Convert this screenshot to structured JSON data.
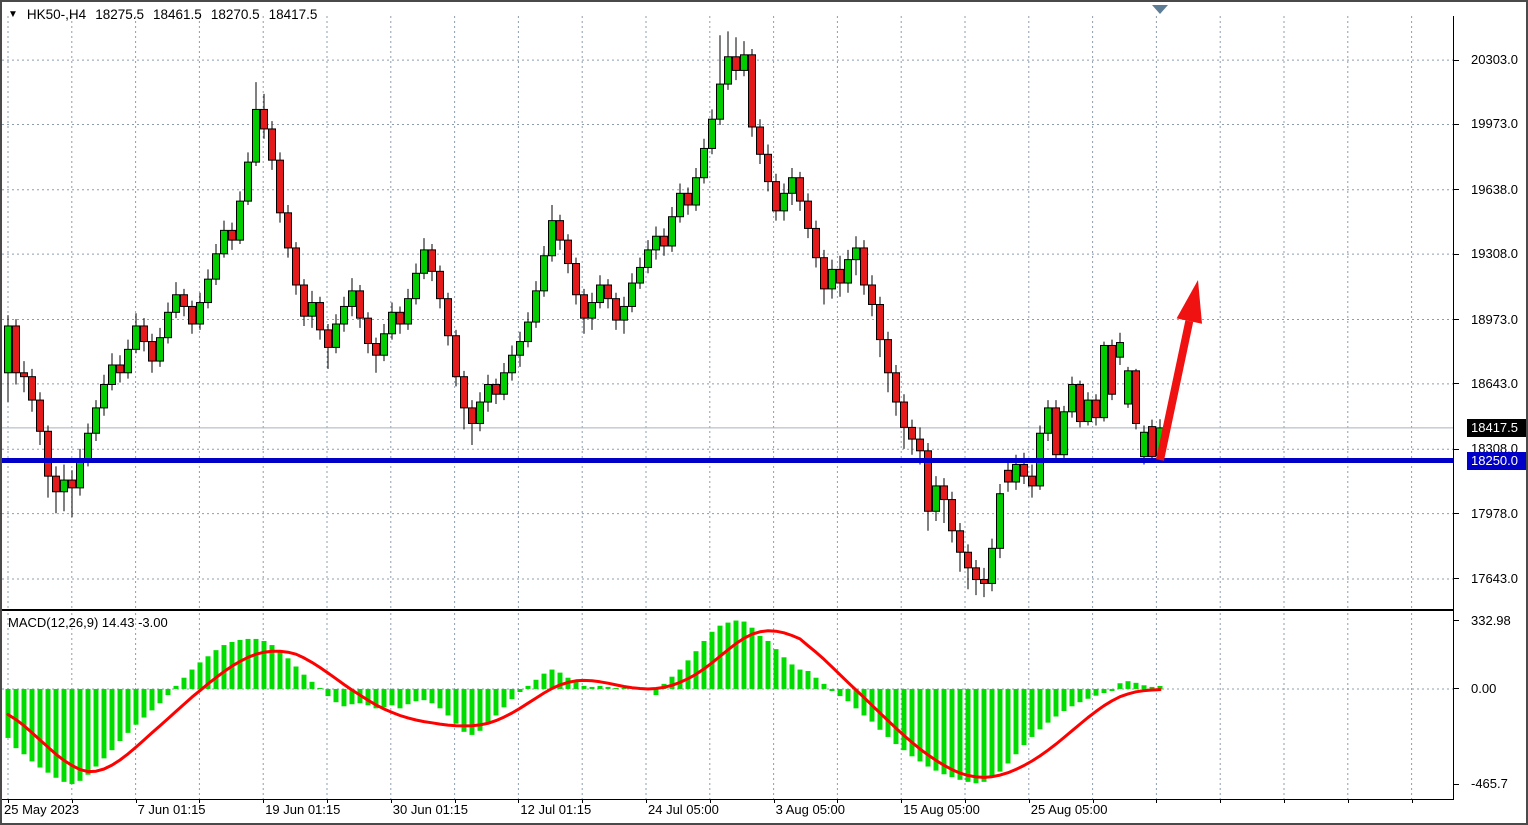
{
  "window": {
    "symbol_marker_icon": "▼",
    "title": {
      "symbol_period": "HK50-,H4",
      "open": "18275.5",
      "high": "18461.5",
      "low": "18270.5",
      "close": "18417.5"
    }
  },
  "colors": {
    "bull": "#00CC00",
    "bear": "#E41A1A",
    "outline": "#000000",
    "macd_histogram": "#00DC00",
    "macd_signal": "#FF0000",
    "grid": "#8E9DAD",
    "support_line": "#0000C8",
    "current_price_line": "#A9B2BB",
    "price_box_bg": "#000000",
    "support_box_bg": "#0000C8",
    "arrow": "#F01111",
    "bar_marker": "#5C7D95"
  },
  "chart_data": [
    {
      "type": "candlestick",
      "symbol": "HK50-",
      "timeframe": "H4",
      "current_bar": {
        "open": 18275.5,
        "high": 18461.5,
        "low": 18270.5,
        "close": 18417.5
      },
      "y_axis": {
        "range": [
          17489,
          20529
        ],
        "ticks": [
          [
            "20303.0",
            20303
          ],
          [
            "19973.0",
            19973
          ],
          [
            "19638.0",
            19638
          ],
          [
            "19308.0",
            19308
          ],
          [
            "18973.0",
            18973
          ],
          [
            "18643.0",
            18643
          ],
          [
            "18308.0",
            18308
          ],
          [
            "17978.0",
            17978
          ],
          [
            "17643.0",
            17643
          ]
        ]
      },
      "x_axis": {
        "labels": [
          "25 May 2023",
          "7 Jun 01:15",
          "19 Jun 01:15",
          "30 Jun 01:15",
          "12 Jul 01:15",
          "24 Jul 05:00",
          "3 Aug 05:00",
          "15 Aug 05:00",
          "25 Aug 05:00"
        ]
      },
      "current_price_label": "18417.5",
      "current_price": 18417.5,
      "support_label": "18250.0",
      "support_price": 18250,
      "candles": [
        [
          18700,
          18995,
          18550,
          18940
        ],
        [
          18940,
          18975,
          18640,
          18700
        ],
        [
          18700,
          18760,
          18600,
          18680
        ],
        [
          18680,
          18720,
          18500,
          18560
        ],
        [
          18560,
          18600,
          18330,
          18400
        ],
        [
          18400,
          18430,
          18060,
          18170
        ],
        [
          18170,
          18220,
          17980,
          18090
        ],
        [
          18090,
          18230,
          17990,
          18150
        ],
        [
          18150,
          18200,
          17960,
          18110
        ],
        [
          18110,
          18310,
          18070,
          18260
        ],
        [
          18260,
          18440,
          18220,
          18390
        ],
        [
          18390,
          18560,
          18350,
          18520
        ],
        [
          18520,
          18690,
          18480,
          18640
        ],
        [
          18640,
          18800,
          18610,
          18740
        ],
        [
          18740,
          18790,
          18650,
          18700
        ],
        [
          18700,
          18870,
          18670,
          18820
        ],
        [
          18820,
          19005,
          18800,
          18940
        ],
        [
          18940,
          18980,
          18810,
          18860
        ],
        [
          18860,
          18900,
          18700,
          18760
        ],
        [
          18760,
          18930,
          18730,
          18880
        ],
        [
          18880,
          19060,
          18850,
          19010
        ],
        [
          19010,
          19165,
          18980,
          19100
        ],
        [
          19100,
          19130,
          18990,
          19040
        ],
        [
          19040,
          19070,
          18900,
          18950
        ],
        [
          18950,
          19110,
          18920,
          19060
        ],
        [
          19060,
          19230,
          19030,
          19180
        ],
        [
          19180,
          19360,
          19150,
          19310
        ],
        [
          19310,
          19480,
          19290,
          19430
        ],
        [
          19430,
          19470,
          19330,
          19380
        ],
        [
          19380,
          19630,
          19360,
          19580
        ],
        [
          19580,
          19830,
          19560,
          19780
        ],
        [
          19780,
          20190,
          19760,
          20050
        ],
        [
          20050,
          20130,
          19900,
          19950
        ],
        [
          19950,
          19990,
          19740,
          19790
        ],
        [
          19790,
          19830,
          19470,
          19520
        ],
        [
          19520,
          19560,
          19290,
          19340
        ],
        [
          19340,
          19370,
          19100,
          19150
        ],
        [
          19150,
          19180,
          18940,
          18990
        ],
        [
          18990,
          19120,
          18930,
          19060
        ],
        [
          19060,
          19090,
          18870,
          18920
        ],
        [
          18920,
          18950,
          18720,
          18830
        ],
        [
          18830,
          19000,
          18800,
          18950
        ],
        [
          18950,
          19090,
          18910,
          19040
        ],
        [
          19040,
          19185,
          18990,
          19120
        ],
        [
          19120,
          19150,
          18930,
          18980
        ],
        [
          18980,
          19010,
          18800,
          18850
        ],
        [
          18850,
          18880,
          18700,
          18790
        ],
        [
          18790,
          18950,
          18760,
          18900
        ],
        [
          18900,
          19060,
          18870,
          19010
        ],
        [
          19010,
          19040,
          18900,
          18950
        ],
        [
          18950,
          19130,
          18920,
          19080
        ],
        [
          19080,
          19260,
          19050,
          19210
        ],
        [
          19210,
          19390,
          19180,
          19330
        ],
        [
          19330,
          19360,
          19170,
          19220
        ],
        [
          19220,
          19250,
          19030,
          19080
        ],
        [
          19080,
          19110,
          18840,
          18890
        ],
        [
          18890,
          18920,
          18630,
          18680
        ],
        [
          18680,
          18710,
          18410,
          18520
        ],
        [
          18520,
          18560,
          18330,
          18440
        ],
        [
          18440,
          18600,
          18400,
          18550
        ],
        [
          18550,
          18690,
          18500,
          18640
        ],
        [
          18640,
          18670,
          18540,
          18590
        ],
        [
          18590,
          18750,
          18560,
          18700
        ],
        [
          18700,
          18840,
          18660,
          18790
        ],
        [
          18790,
          18910,
          18730,
          18860
        ],
        [
          18860,
          19010,
          18830,
          18960
        ],
        [
          18960,
          19170,
          18930,
          19120
        ],
        [
          19120,
          19350,
          19090,
          19300
        ],
        [
          19300,
          19560,
          19270,
          19480
        ],
        [
          19480,
          19510,
          19330,
          19380
        ],
        [
          19380,
          19410,
          19210,
          19260
        ],
        [
          19260,
          19290,
          19050,
          19100
        ],
        [
          19100,
          19130,
          18900,
          18980
        ],
        [
          18980,
          19110,
          18920,
          19060
        ],
        [
          19060,
          19200,
          19030,
          19150
        ],
        [
          19150,
          19180,
          19030,
          19080
        ],
        [
          19080,
          19110,
          18920,
          18970
        ],
        [
          18970,
          19090,
          18900,
          19040
        ],
        [
          19040,
          19210,
          19010,
          19160
        ],
        [
          19160,
          19290,
          19130,
          19240
        ],
        [
          19240,
          19380,
          19210,
          19330
        ],
        [
          19330,
          19450,
          19280,
          19400
        ],
        [
          19400,
          19440,
          19300,
          19350
        ],
        [
          19350,
          19550,
          19320,
          19500
        ],
        [
          19500,
          19670,
          19470,
          19620
        ],
        [
          19620,
          19650,
          19510,
          19560
        ],
        [
          19560,
          19750,
          19530,
          19700
        ],
        [
          19700,
          19900,
          19670,
          19850
        ],
        [
          19850,
          20050,
          19820,
          20000
        ],
        [
          20000,
          20430,
          19970,
          20180
        ],
        [
          20180,
          20450,
          20150,
          20320
        ],
        [
          20320,
          20420,
          20200,
          20250
        ],
        [
          20250,
          20400,
          20220,
          20330
        ],
        [
          20330,
          20360,
          19910,
          19960
        ],
        [
          19960,
          20000,
          19770,
          19820
        ],
        [
          19820,
          19870,
          19630,
          19680
        ],
        [
          19680,
          19720,
          19480,
          19530
        ],
        [
          19530,
          19670,
          19480,
          19620
        ],
        [
          19620,
          19750,
          19560,
          19700
        ],
        [
          19700,
          19730,
          19530,
          19580
        ],
        [
          19580,
          19620,
          19390,
          19440
        ],
        [
          19440,
          19480,
          19240,
          19290
        ],
        [
          19290,
          19330,
          19050,
          19130
        ],
        [
          19130,
          19280,
          19080,
          19230
        ],
        [
          19230,
          19300,
          19090,
          19160
        ],
        [
          19160,
          19330,
          19110,
          19280
        ],
        [
          19280,
          19400,
          19200,
          19340
        ],
        [
          19340,
          19380,
          19100,
          19150
        ],
        [
          19150,
          19200,
          18990,
          19050
        ],
        [
          19050,
          19090,
          18780,
          18870
        ],
        [
          18870,
          18910,
          18600,
          18700
        ],
        [
          18700,
          18740,
          18480,
          18550
        ],
        [
          18550,
          18590,
          18310,
          18420
        ],
        [
          18420,
          18460,
          18280,
          18360
        ],
        [
          18360,
          18420,
          18230,
          18300
        ],
        [
          18300,
          18340,
          17890,
          17990
        ],
        [
          17990,
          18170,
          17940,
          18120
        ],
        [
          18120,
          18160,
          17930,
          18050
        ],
        [
          18050,
          18090,
          17830,
          17890
        ],
        [
          17890,
          17930,
          17680,
          17780
        ],
        [
          17780,
          17820,
          17590,
          17700
        ],
        [
          17700,
          17740,
          17560,
          17640
        ],
        [
          17640,
          17700,
          17550,
          17620
        ],
        [
          17620,
          17850,
          17580,
          17800
        ],
        [
          17800,
          18130,
          17750,
          18080
        ],
        [
          18200,
          18260,
          18090,
          18140
        ],
        [
          18140,
          18280,
          18100,
          18230
        ],
        [
          18230,
          18290,
          18130,
          18170
        ],
        [
          18170,
          18230,
          18060,
          18120
        ],
        [
          18120,
          18430,
          18100,
          18390
        ],
        [
          18390,
          18560,
          18350,
          18520
        ],
        [
          18520,
          18560,
          18240,
          18280
        ],
        [
          18280,
          18530,
          18260,
          18500
        ],
        [
          18500,
          18680,
          18470,
          18640
        ],
        [
          18640,
          18660,
          18420,
          18450
        ],
        [
          18450,
          18600,
          18430,
          18560
        ],
        [
          18560,
          18590,
          18430,
          18470
        ],
        [
          18470,
          18860,
          18450,
          18840
        ],
        [
          18840,
          18870,
          18560,
          18590
        ],
        [
          18780,
          18905,
          18740,
          18855
        ],
        [
          18540,
          18730,
          18520,
          18710
        ],
        [
          18710,
          18720,
          18410,
          18440
        ],
        [
          18270,
          18430,
          18230,
          18395
        ],
        [
          18424,
          18460,
          18240,
          18270
        ],
        [
          18275.5,
          18461.5,
          18270.5,
          18417.5
        ]
      ]
    },
    {
      "type": "macd",
      "label": "MACD(12,26,9) 14.43 -3.00",
      "macd_value": 14.43,
      "signal_value": -3.0,
      "y_axis": {
        "range": [
          -539,
          372
        ],
        "ticks": [
          [
            "332.98",
            332.98
          ],
          [
            "0.00",
            0
          ],
          [
            "-465.7",
            -465.7
          ]
        ]
      },
      "histogram": [
        -240,
        -290,
        -320,
        -355,
        -385,
        -410,
        -435,
        -455,
        -466,
        -450,
        -420,
        -380,
        -340,
        -300,
        -255,
        -215,
        -175,
        -140,
        -105,
        -70,
        -30,
        15,
        55,
        95,
        130,
        160,
        190,
        215,
        230,
        240,
        245,
        245,
        235,
        215,
        185,
        150,
        110,
        70,
        35,
        5,
        -35,
        -65,
        -85,
        -75,
        -70,
        -80,
        -95,
        -90,
        -80,
        -95,
        -75,
        -60,
        -55,
        -70,
        -95,
        -130,
        -170,
        -210,
        -225,
        -205,
        -170,
        -130,
        -90,
        -50,
        -15,
        15,
        45,
        75,
        95,
        80,
        55,
        35,
        15,
        10,
        15,
        10,
        5,
        5,
        10,
        5,
        -5,
        -30,
        25,
        60,
        95,
        140,
        185,
        235,
        280,
        310,
        325,
        335,
        330,
        300,
        260,
        235,
        195,
        155,
        120,
        95,
        88,
        55,
        25,
        -10,
        -35,
        -60,
        -95,
        -130,
        -160,
        -200,
        -235,
        -270,
        -300,
        -330,
        -355,
        -380,
        -400,
        -418,
        -432,
        -445,
        -455,
        -462,
        -455,
        -435,
        -405,
        -365,
        -320,
        -275,
        -235,
        -198,
        -165,
        -135,
        -108,
        -85,
        -65,
        -48,
        -33,
        -20,
        -10,
        28,
        38,
        30,
        18,
        10,
        14.43
      ],
      "signal_line": [
        -125,
        -150,
        -180,
        -215,
        -250,
        -285,
        -320,
        -350,
        -375,
        -395,
        -405,
        -403,
        -392,
        -373,
        -348,
        -318,
        -285,
        -250,
        -215,
        -180,
        -145,
        -110,
        -75,
        -40,
        -8,
        25,
        55,
        85,
        112,
        135,
        155,
        170,
        180,
        185,
        185,
        180,
        170,
        152,
        130,
        105,
        78,
        50,
        22,
        -5,
        -30,
        -55,
        -78,
        -98,
        -115,
        -130,
        -142,
        -152,
        -160,
        -166,
        -172,
        -177,
        -180,
        -181,
        -180,
        -176,
        -168,
        -155,
        -138,
        -118,
        -95,
        -70,
        -45,
        -20,
        2,
        20,
        32,
        40,
        42,
        40,
        35,
        28,
        20,
        12,
        6,
        2,
        0,
        2,
        8,
        18,
        32,
        50,
        72,
        98,
        128,
        160,
        192,
        222,
        248,
        268,
        280,
        285,
        283,
        275,
        262,
        245,
        212,
        180,
        145,
        108,
        70,
        32,
        -5,
        -42,
        -80,
        -118,
        -155,
        -192,
        -228,
        -262,
        -294,
        -323,
        -350,
        -374,
        -395,
        -412,
        -424,
        -431,
        -433,
        -430,
        -422,
        -410,
        -394,
        -375,
        -353,
        -328,
        -300,
        -270,
        -238,
        -205,
        -172,
        -140,
        -110,
        -82,
        -58,
        -38,
        -24,
        -14,
        -8,
        -5,
        -3
      ]
    }
  ],
  "annotation_arrow": {
    "tail": [
      1158,
      444
    ],
    "shaft_end": [
      1187.3,
      305.1
    ],
    "tip": [
      1196,
      264
    ],
    "base": [
      [
        1200,
        307.8
      ],
      [
        1174.6,
        302.4
      ]
    ],
    "shaft_width": 8
  }
}
